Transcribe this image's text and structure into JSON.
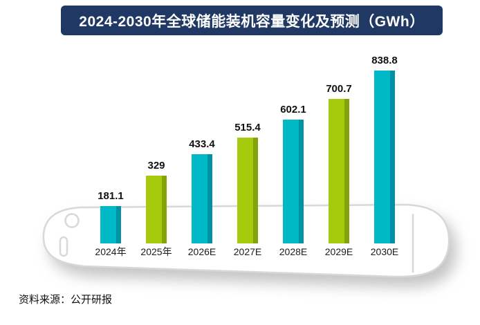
{
  "title": "2024-2030年全球储能装机容量变化及预测（GWh）",
  "source": "资料来源：公开研报",
  "colors": {
    "banner_bg": "#203864",
    "banner_text": "#ffffff",
    "background": "#ffffff",
    "label_text": "#111111",
    "phone_outline": "#d8d8d8",
    "bar_cyan": "#00b9c6",
    "bar_cyan_dark": "#0092a4",
    "bar_green": "#a6cb0c",
    "bar_green_dark": "#85a40a"
  },
  "chart_data": {
    "type": "bar",
    "title": "2024-2030年全球储能装机容量变化及预测（GWh）",
    "categories": [
      "2024年",
      "2025年",
      "2026E",
      "2027E",
      "2028E",
      "2029E",
      "2030E"
    ],
    "values": [
      181.1,
      329,
      433.4,
      515.4,
      602.1,
      700.7,
      838.8
    ],
    "value_labels": [
      "181.1",
      "329",
      "433.4",
      "515.4",
      "602.1",
      "700.7",
      "838.8"
    ],
    "xlabel": "",
    "ylabel": "",
    "ylim": [
      0,
      900
    ],
    "grid": false,
    "legend": false,
    "bar_colors_alternate": [
      "#00b9c6",
      "#a6cb0c"
    ],
    "bar_side_colors": [
      "#0092a4",
      "#85a40a"
    ],
    "annotation": "数据标签位于柱顶上方"
  }
}
